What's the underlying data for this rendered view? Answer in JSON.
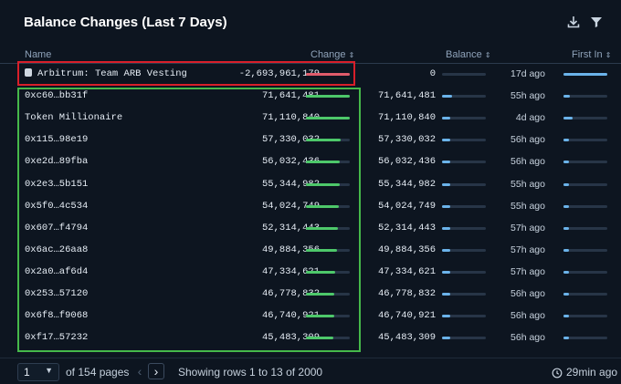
{
  "title": "Balance Changes (Last 7 Days)",
  "icons": {
    "download": "download-icon",
    "filter": "filter-icon"
  },
  "columns": {
    "name": "Name",
    "change": "Change",
    "balance": "Balance",
    "first_in": "First In"
  },
  "colors": {
    "negative": "#e05c6b",
    "positive": "#4dc86a",
    "balance_bar": "#6bb3ea",
    "first_in_bar": "#6bb3ea"
  },
  "rows": [
    {
      "name": "Arbitrum: Team ARB Vesting",
      "has_icon": true,
      "change": "-2,693,961,179",
      "change_fraction": 1.0,
      "negative": true,
      "balance": "0",
      "balance_fraction": 0.0,
      "first_in": "17d ago",
      "first_fraction": 1.0
    },
    {
      "name": "0xc60…bb31f",
      "change": "71,641,481",
      "change_fraction": 1.0,
      "balance": "71,641,481",
      "balance_fraction": 0.22,
      "first_in": "55h ago",
      "first_fraction": 0.14
    },
    {
      "name": "Token Millionaire",
      "change": "71,110,840",
      "change_fraction": 0.99,
      "balance": "71,110,840",
      "balance_fraction": 0.18,
      "first_in": "4d ago",
      "first_fraction": 0.2
    },
    {
      "name": "0x115…98e19",
      "change": "57,330,032",
      "change_fraction": 0.8,
      "balance": "57,330,032",
      "balance_fraction": 0.18,
      "first_in": "56h ago",
      "first_fraction": 0.12
    },
    {
      "name": "0xe2d…89fba",
      "change": "56,032,436",
      "change_fraction": 0.78,
      "balance": "56,032,436",
      "balance_fraction": 0.18,
      "first_in": "56h ago",
      "first_fraction": 0.12
    },
    {
      "name": "0x2e3…5b151",
      "change": "55,344,982",
      "change_fraction": 0.77,
      "balance": "55,344,982",
      "balance_fraction": 0.18,
      "first_in": "55h ago",
      "first_fraction": 0.12
    },
    {
      "name": "0x5f0…4c534",
      "change": "54,024,749",
      "change_fraction": 0.75,
      "balance": "54,024,749",
      "balance_fraction": 0.18,
      "first_in": "55h ago",
      "first_fraction": 0.12
    },
    {
      "name": "0x607…f4794",
      "change": "52,314,443",
      "change_fraction": 0.73,
      "balance": "52,314,443",
      "balance_fraction": 0.18,
      "first_in": "57h ago",
      "first_fraction": 0.12
    },
    {
      "name": "0x6ac…26aa8",
      "change": "49,884,356",
      "change_fraction": 0.7,
      "balance": "49,884,356",
      "balance_fraction": 0.18,
      "first_in": "57h ago",
      "first_fraction": 0.12
    },
    {
      "name": "0x2a0…af6d4",
      "change": "47,334,621",
      "change_fraction": 0.66,
      "balance": "47,334,621",
      "balance_fraction": 0.18,
      "first_in": "57h ago",
      "first_fraction": 0.12
    },
    {
      "name": "0x253…57120",
      "change": "46,778,832",
      "change_fraction": 0.65,
      "balance": "46,778,832",
      "balance_fraction": 0.18,
      "first_in": "56h ago",
      "first_fraction": 0.12
    },
    {
      "name": "0x6f8…f9068",
      "change": "46,740,921",
      "change_fraction": 0.65,
      "balance": "46,740,921",
      "balance_fraction": 0.18,
      "first_in": "56h ago",
      "first_fraction": 0.12
    },
    {
      "name": "0xf17…57232",
      "change": "45,483,309",
      "change_fraction": 0.63,
      "balance": "45,483,309",
      "balance_fraction": 0.18,
      "first_in": "56h ago",
      "first_fraction": 0.12
    }
  ],
  "footer": {
    "page_value": "1",
    "of_pages": "of 154 pages",
    "showing": "Showing rows 1 to 13 of 2000",
    "updated": "29min ago"
  }
}
